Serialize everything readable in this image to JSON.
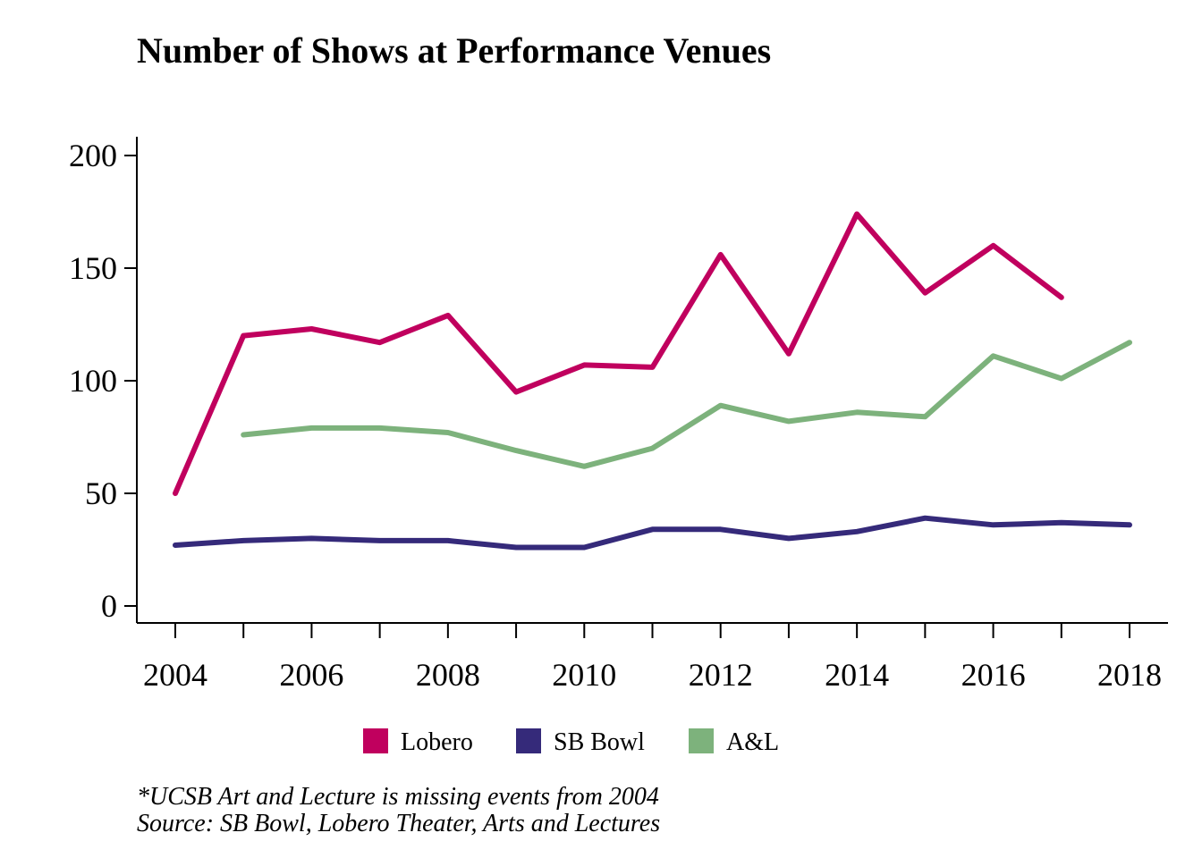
{
  "chart_data": {
    "type": "line",
    "title": "Number of Shows at Performance Venues",
    "xlabel": "",
    "ylabel": "",
    "x": [
      2004,
      2005,
      2006,
      2007,
      2008,
      2009,
      2010,
      2011,
      2012,
      2013,
      2014,
      2015,
      2016,
      2017,
      2018
    ],
    "xticks": [
      2004,
      2006,
      2008,
      2010,
      2012,
      2014,
      2016,
      2018
    ],
    "yticks": [
      0,
      50,
      100,
      150,
      200
    ],
    "xlim": [
      2004,
      2018
    ],
    "ylim": [
      0,
      200
    ],
    "grid": false,
    "legend_position": "bottom",
    "series": [
      {
        "name": "Lobero",
        "color": "#c0005e",
        "values": [
          50,
          120,
          123,
          117,
          129,
          95,
          107,
          106,
          156,
          112,
          174,
          139,
          160,
          137,
          null
        ]
      },
      {
        "name": "SB Bowl",
        "color": "#352a7a",
        "values": [
          27,
          29,
          30,
          29,
          29,
          26,
          26,
          34,
          34,
          30,
          33,
          39,
          36,
          37,
          36
        ]
      },
      {
        "name": "A&L",
        "color": "#7db27c",
        "values": [
          null,
          76,
          79,
          79,
          77,
          69,
          62,
          70,
          89,
          82,
          86,
          84,
          111,
          101,
          117
        ]
      }
    ],
    "notes": [
      "*UCSB Art and Lecture is missing events from 2004",
      "Source: SB Bowl, Lobero Theater, Arts and Lectures"
    ]
  }
}
